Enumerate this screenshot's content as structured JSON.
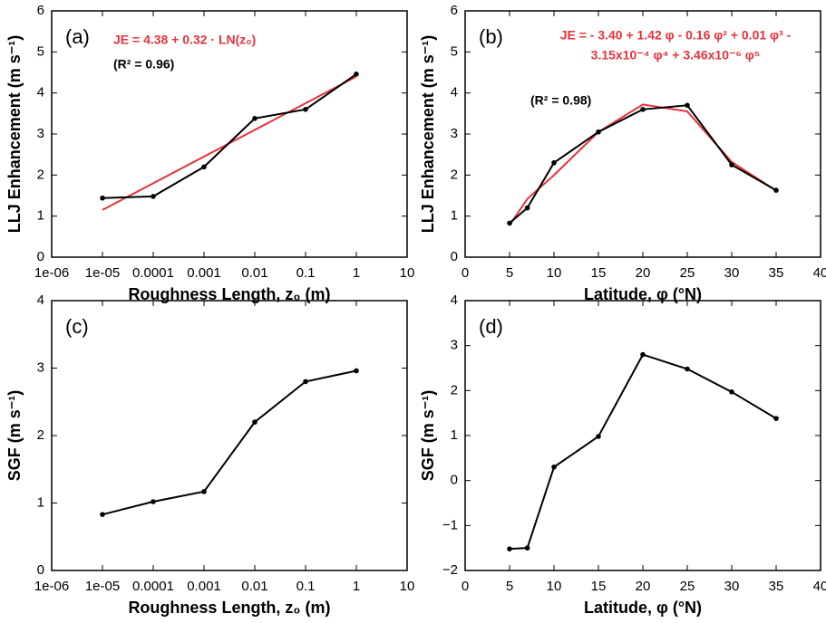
{
  "chart_data": [
    {
      "type": "line",
      "panel_label": "(a)",
      "xlabel": "Roughness Length, z₀ (m)",
      "ylabel": "LLJ Enhancement (m s⁻¹)",
      "xscale": "log",
      "xlim": [
        1e-06,
        10
      ],
      "ylim": [
        0,
        6
      ],
      "xticks": [
        {
          "value": 1e-06,
          "label": "1e-06"
        },
        {
          "value": 1e-05,
          "label": "1e-05"
        },
        0.0001,
        0.001,
        0.01,
        0.1,
        1,
        10
      ],
      "yticks": [
        0,
        1,
        2,
        3,
        4,
        5,
        6
      ],
      "annotations": [
        {
          "text": "JE = 4.38 + 0.32 · LN(z₀)",
          "color": "#e8313a"
        },
        {
          "text": "(R² = 0.96)",
          "color": "#000000"
        }
      ],
      "series": [
        {
          "color": "#e8313a",
          "markers": false,
          "x": [
            1e-05,
            1
          ],
          "values": [
            1.15,
            4.4
          ]
        },
        {
          "color": "#000000",
          "markers": true,
          "x": [
            1e-05,
            0.0001,
            0.001,
            0.01,
            0.1,
            1
          ],
          "values": [
            1.44,
            1.48,
            2.2,
            3.38,
            3.6,
            4.46
          ]
        }
      ]
    },
    {
      "type": "line",
      "panel_label": "(b)",
      "xlabel": "Latitude, φ (°N)",
      "ylabel": "LLJ Enhancement (m s⁻¹)",
      "xlim": [
        0,
        40
      ],
      "ylim": [
        0,
        6
      ],
      "xticks": [
        0,
        5,
        10,
        15,
        20,
        25,
        30,
        35,
        40
      ],
      "yticks": [
        0,
        1,
        2,
        3,
        4,
        5,
        6
      ],
      "annotations": [
        {
          "text": "JE = - 3.40 + 1.42 φ - 0.16 φ² + 0.01 φ³ -",
          "color": "#e8313a"
        },
        {
          "text": "3.15x10⁻⁴ φ⁴ + 3.46x10⁻⁶ φ⁵",
          "color": "#e8313a"
        },
        {
          "text": "(R² = 0.98)",
          "color": "#000000"
        }
      ],
      "series": [
        {
          "color": "#e8313a",
          "markers": false,
          "x": [
            5,
            7,
            10,
            15,
            20,
            25,
            30,
            35
          ],
          "values": [
            0.78,
            1.42,
            2.0,
            3.05,
            3.72,
            3.55,
            2.32,
            1.62
          ]
        },
        {
          "color": "#000000",
          "markers": true,
          "x": [
            5,
            7,
            10,
            15,
            20,
            25,
            30,
            35
          ],
          "values": [
            0.83,
            1.2,
            2.3,
            3.05,
            3.6,
            3.7,
            2.25,
            1.63
          ]
        }
      ]
    },
    {
      "type": "line",
      "panel_label": "(c)",
      "xlabel": "Roughness Length, z₀ (m)",
      "ylabel": "SGF (m s⁻¹)",
      "xscale": "log",
      "xlim": [
        1e-06,
        10
      ],
      "ylim": [
        0,
        4
      ],
      "xticks": [
        {
          "value": 1e-06,
          "label": "1e-06"
        },
        {
          "value": 1e-05,
          "label": "1e-05"
        },
        0.0001,
        0.001,
        0.01,
        0.1,
        1,
        10
      ],
      "yticks": [
        0,
        1,
        2,
        3,
        4
      ],
      "series": [
        {
          "color": "#000000",
          "markers": true,
          "x": [
            1e-05,
            0.0001,
            0.001,
            0.01,
            0.1,
            1
          ],
          "values": [
            0.83,
            1.02,
            1.17,
            2.2,
            2.8,
            2.96
          ]
        }
      ]
    },
    {
      "type": "line",
      "panel_label": "(d)",
      "xlabel": "Latitude, φ (°N)",
      "ylabel": "SGF (m s⁻¹)",
      "xlim": [
        0,
        40
      ],
      "ylim": [
        -2,
        4
      ],
      "xticks": [
        0,
        5,
        10,
        15,
        20,
        25,
        30,
        35,
        40
      ],
      "yticks": [
        {
          "value": -2,
          "label": "−2"
        },
        {
          "value": -1,
          "label": "−1"
        },
        0,
        1,
        2,
        3,
        4
      ],
      "series": [
        {
          "color": "#000000",
          "markers": true,
          "x": [
            5,
            7,
            10,
            15,
            20,
            25,
            30,
            35
          ],
          "values": [
            -1.52,
            -1.5,
            0.3,
            0.98,
            2.8,
            2.48,
            1.97,
            1.38
          ]
        }
      ]
    }
  ]
}
